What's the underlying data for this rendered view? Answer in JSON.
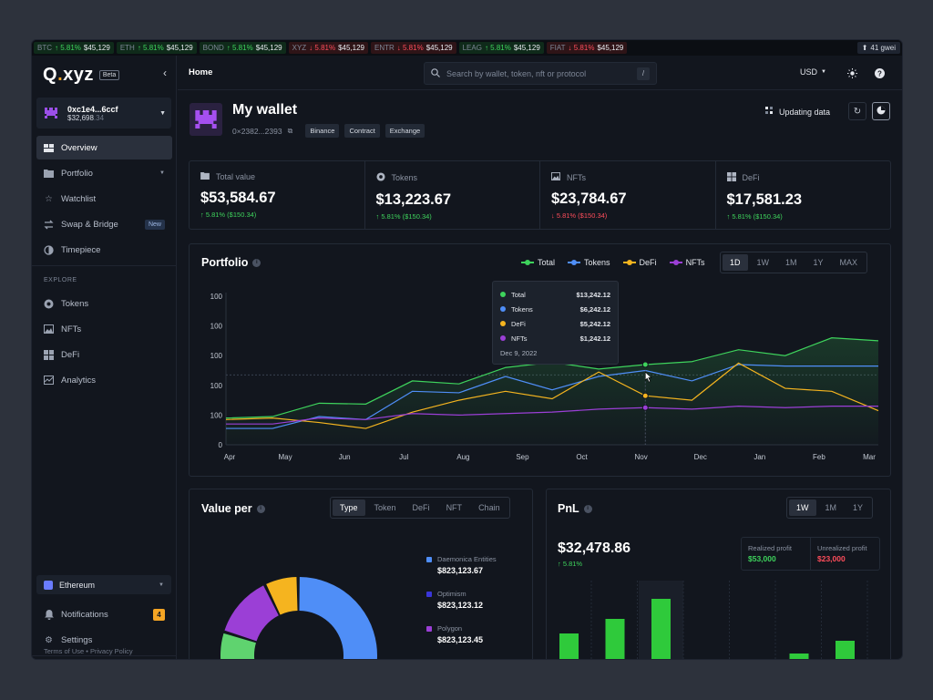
{
  "ticker": [
    {
      "sym": "BTC",
      "chg": "↑ 5.81%",
      "price": "$45,129",
      "dir": "up"
    },
    {
      "sym": "ETH",
      "chg": "↑ 5.81%",
      "price": "$45,129",
      "dir": "up"
    },
    {
      "sym": "BOND",
      "chg": "↑ 5.81%",
      "price": "$45,129",
      "dir": "up"
    },
    {
      "sym": "XYZ",
      "chg": "↓ 5.81%",
      "price": "$45,129",
      "dir": "down"
    },
    {
      "sym": "ENTR",
      "chg": "↓ 5.81%",
      "price": "$45,129",
      "dir": "down"
    },
    {
      "sym": "LEAG",
      "chg": "↑ 5.81%",
      "price": "$45,129",
      "dir": "up"
    },
    {
      "sym": "FIAT",
      "chg": "↓ 5.81%",
      "price": "$45,129",
      "dir": "down"
    }
  ],
  "gas": "41 gwei",
  "brand": {
    "name_main": "Q",
    "name_dot": ".",
    "name_rest": "xyz",
    "beta": "Beta"
  },
  "account": {
    "address": "0xc1e4...6ccf",
    "balance_main": "$32,698",
    "balance_dec": ".34"
  },
  "nav": {
    "overview": "Overview",
    "portfolio": "Portfolio",
    "watchlist": "Watchlist",
    "swap": "Swap & Bridge",
    "swap_badge": "New",
    "timepiece": "Timepiece",
    "explore_label": "EXPLORE",
    "tokens": "Tokens",
    "nfts": "NFTs",
    "defi": "DeFi",
    "analytics": "Analytics",
    "chain": "Ethereum",
    "notifications": "Notifications",
    "notif_count": "4",
    "settings": "Settings",
    "terms": "Terms of Use",
    "privacy": "Privacy Policy"
  },
  "topbar": {
    "breadcrumb": "Home",
    "search_placeholder": "Search by wallet, token, nft or protocol",
    "search_shortcut": "/",
    "currency": "USD"
  },
  "wallet": {
    "title": "My wallet",
    "address": "0×2382...2393",
    "tags": [
      "Binance",
      "Contract",
      "Exchange"
    ],
    "status": "Updating data"
  },
  "stats": [
    {
      "label": "Total value",
      "value": "$53,584.67",
      "change": "↑ 5.81% ($150.34)",
      "dir": "up",
      "icon": "folder-icon"
    },
    {
      "label": "Tokens",
      "value": "$13,223.67",
      "change": "↑ 5.81% ($150.34)",
      "dir": "up",
      "icon": "token-icon"
    },
    {
      "label": "NFTs",
      "value": "$23,784.67",
      "change": "↓ 5.81% ($150.34)",
      "dir": "down",
      "icon": "image-icon"
    },
    {
      "label": "DeFi",
      "value": "$17,581.23",
      "change": "↑ 5.81% ($150.34)",
      "dir": "up",
      "icon": "grid-icon"
    }
  ],
  "portfolio": {
    "title": "Portfolio",
    "legend": [
      "Total",
      "Tokens",
      "DeFi",
      "NFTs"
    ],
    "ranges": [
      "1D",
      "1W",
      "1M",
      "1Y",
      "MAX"
    ],
    "active_range": "1D",
    "tooltip": {
      "rows": [
        {
          "name": "Total",
          "value": "$13,242.12",
          "color": "#3ed35c"
        },
        {
          "name": "Tokens",
          "value": "$6,242.12",
          "color": "#4f8ef7"
        },
        {
          "name": "DeFi",
          "value": "$5,242.12",
          "color": "#f5b41f"
        },
        {
          "name": "NFTs",
          "value": "$1,242.12",
          "color": "#9b3fd6"
        }
      ],
      "date": "Dec 9, 2022"
    }
  },
  "chart_data": {
    "type": "line",
    "title": "Portfolio",
    "categories": [
      "Apr",
      "May",
      "Jun",
      "Jul",
      "Aug",
      "Sep",
      "Oct",
      "Nov",
      "Dec",
      "Jan",
      "Feb",
      "Mar"
    ],
    "y_tick_labels": [
      "0",
      "100",
      "100",
      "100",
      "100",
      "100"
    ],
    "ylim": [
      0,
      5
    ],
    "grid": false,
    "legend_position": "top-right",
    "series": [
      {
        "name": "Total",
        "color": "#3ed35c",
        "x": [
          0,
          1,
          2,
          3,
          4,
          5,
          6,
          7,
          8,
          9,
          10,
          11,
          12,
          13,
          14
        ],
        "values": [
          0.9,
          0.95,
          1.4,
          1.37,
          2.15,
          2.05,
          2.6,
          2.78,
          2.55,
          2.7,
          2.8,
          3.2,
          3.0,
          3.6,
          3.5
        ]
      },
      {
        "name": "Tokens",
        "color": "#4f8ef7",
        "x": [
          0,
          1,
          2,
          3,
          4,
          5,
          6,
          7,
          8,
          9,
          10,
          11,
          12,
          13,
          14
        ],
        "values": [
          0.55,
          0.55,
          0.95,
          0.85,
          1.8,
          1.75,
          2.3,
          1.85,
          2.3,
          2.5,
          2.15,
          2.7,
          2.65,
          2.65,
          2.65
        ]
      },
      {
        "name": "DeFi",
        "color": "#f5b41f",
        "x": [
          0,
          1,
          2,
          3,
          4,
          5,
          6,
          7,
          8,
          9,
          10,
          11,
          12,
          13,
          14
        ],
        "values": [
          0.85,
          0.9,
          0.75,
          0.55,
          1.1,
          1.5,
          1.8,
          1.55,
          2.45,
          1.65,
          1.5,
          2.75,
          1.9,
          1.8,
          1.15
        ]
      },
      {
        "name": "NFTs",
        "color": "#9b3fd6",
        "x": [
          0,
          1,
          2,
          3,
          4,
          5,
          6,
          7,
          8,
          9,
          10,
          11,
          12,
          13,
          14
        ],
        "values": [
          0.7,
          0.7,
          0.9,
          0.85,
          1.05,
          1.0,
          1.05,
          1.1,
          1.2,
          1.25,
          1.2,
          1.3,
          1.25,
          1.3,
          1.3
        ]
      }
    ]
  },
  "value_per": {
    "title": "Value per",
    "tabs": [
      "Type",
      "Token",
      "DeFi",
      "NFT",
      "Chain"
    ],
    "active_tab": "Type",
    "legend": [
      {
        "name": "Daemonica Entities",
        "amount": "$823,123.67",
        "color": "#4f8ef7"
      },
      {
        "name": "Optimism",
        "amount": "$823,123.12",
        "color": "#3a36d9"
      },
      {
        "name": "Polygon",
        "amount": "$823,123.45",
        "color": "#9b3fd6"
      }
    ],
    "donut": [
      {
        "name": "Daemonica Entities",
        "value": 46,
        "color": "#4f8ef7"
      },
      {
        "name": "Optimism",
        "value": 18,
        "color": "#3a36d9"
      },
      {
        "name": "other-green",
        "value": 16,
        "color": "#5fd36f"
      },
      {
        "name": "Polygon",
        "value": 13,
        "color": "#9b3fd6"
      },
      {
        "name": "other-yellow",
        "value": 7,
        "color": "#f5b41f"
      }
    ]
  },
  "pnl": {
    "title": "PnL",
    "ranges": [
      "1W",
      "1M",
      "1Y"
    ],
    "active_range": "1W",
    "value": "$32,478.86",
    "change": "↑ 5.81%",
    "realized_label": "Realized profit",
    "realized_value": "$53,000",
    "unrealized_label": "Unrealized profit",
    "unrealized_value": "$23,000",
    "bars": [
      {
        "value": 28,
        "color": "#2fca3b"
      },
      {
        "value": 44,
        "color": "#2fca3b"
      },
      {
        "value": 66,
        "color": "#2fca3b"
      },
      {
        "value": -12,
        "color": "#e5334b"
      },
      {
        "value": -12,
        "color": "#e5334b"
      },
      {
        "value": 6,
        "color": "#2fca3b"
      },
      {
        "value": 20,
        "color": "#2fca3b"
      }
    ]
  }
}
